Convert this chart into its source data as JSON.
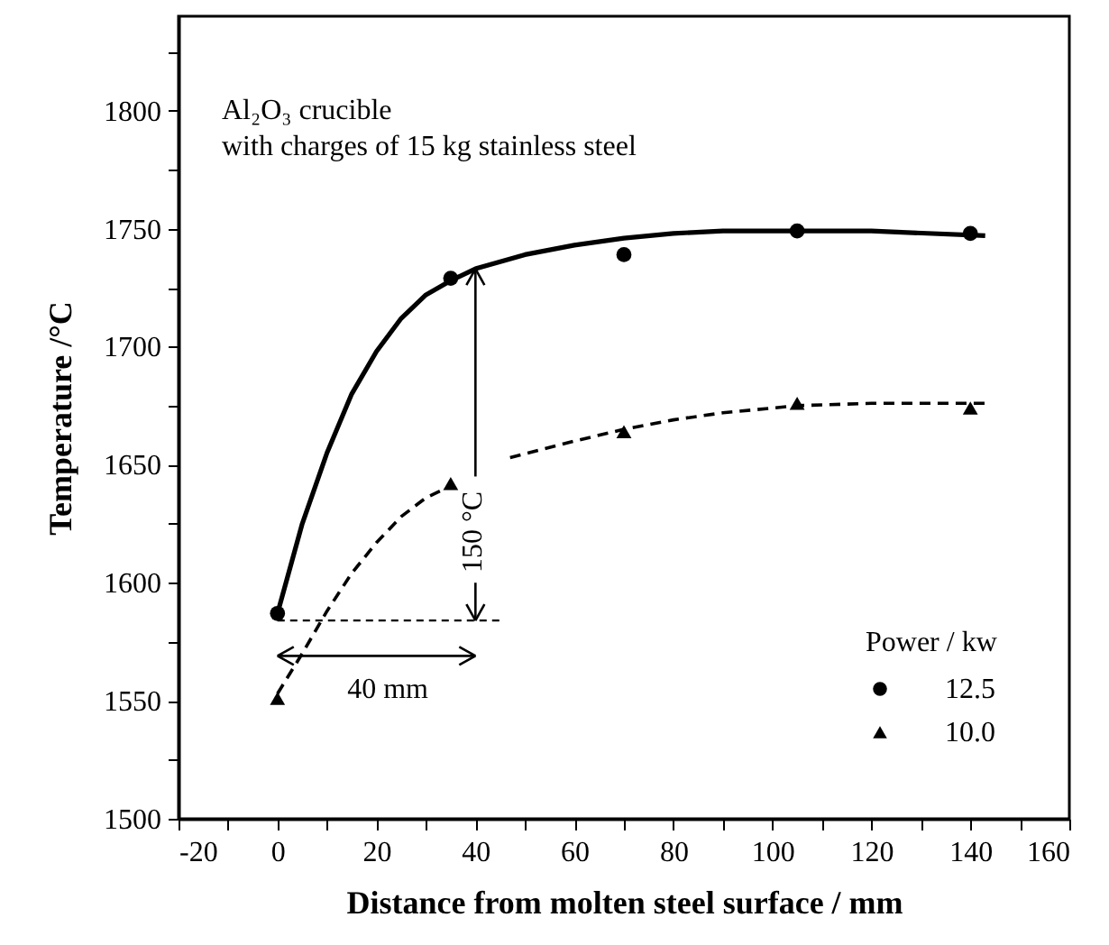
{
  "chart_data": {
    "type": "scatter",
    "xlabel": "Distance from molten steel surface / mm",
    "ylabel": "Temperature /°C",
    "legend_title": "Power / kw",
    "legend": "bottom right",
    "grid": false,
    "xlim": [
      -20,
      160
    ],
    "xticks": [
      -20,
      {
        "value": -10,
        "label": null
      },
      0,
      {
        "value": 10,
        "label": null
      },
      20,
      {
        "value": 30,
        "label": null
      },
      40,
      {
        "value": 50,
        "label": null
      },
      60,
      {
        "value": 70,
        "label": null
      },
      80,
      {
        "value": 90,
        "label": null
      },
      100,
      {
        "value": 110,
        "label": null
      },
      120,
      {
        "value": 130,
        "label": null
      },
      140,
      {
        "value": 150,
        "label": null
      },
      160
    ],
    "ylim": [
      1500,
      1840
    ],
    "yticks": [
      1500,
      {
        "value": 1525,
        "label": null
      },
      1550,
      {
        "value": 1575,
        "label": null
      },
      1600,
      {
        "value": 1625,
        "label": null
      },
      1650,
      {
        "value": 1675,
        "label": null
      },
      1700,
      {
        "value": 1725,
        "label": null
      },
      1750,
      {
        "value": 1775,
        "label": null
      },
      1800,
      {
        "value": 1825,
        "label": null
      }
    ],
    "annotations": [
      "Al₂O₃ crucible",
      "with charges of 15 kg stainless steel",
      {
        "text": "150 °C",
        "x": 40,
        "y": 1733
      },
      "40 mm"
    ],
    "series": [
      {
        "name": "12.5",
        "color": "#000000",
        "marker": "circle",
        "x": [
          0,
          35,
          70,
          105,
          140
        ],
        "values": [
          1587,
          1729,
          1739,
          1749,
          1748
        ]
      },
      {
        "name": "10.0",
        "color": "#000000",
        "marker": "triangle",
        "x": [
          0,
          35,
          70,
          105,
          140
        ],
        "values": [
          1551,
          1642,
          1664,
          1676,
          1674
        ]
      },
      {
        "type": "line",
        "color": "#000000",
        "marker": "none",
        "line_style": "solid",
        "x": [
          0,
          5,
          10,
          15,
          20,
          25,
          30,
          35,
          40,
          50,
          60,
          70,
          80,
          90,
          100,
          120,
          143
        ],
        "values": [
          1587,
          1625,
          1655,
          1680,
          1698,
          1712,
          1722,
          1728,
          1733,
          1739,
          1743,
          1746,
          1748,
          1749,
          1749,
          1749,
          1747
        ]
      },
      {
        "type": "line",
        "color": "#000000",
        "marker": "none",
        "line_style": "dashed",
        "x": [
          0,
          5,
          10,
          15,
          20,
          25,
          30,
          35
        ],
        "values": [
          1553,
          1570,
          1588,
          1604,
          1617,
          1628,
          1636,
          1641
        ]
      },
      {
        "type": "line",
        "color": "#000000",
        "marker": "none",
        "line_style": "dashed",
        "x": [
          47,
          60,
          70,
          80,
          90,
          105,
          120,
          143
        ],
        "values": [
          1653,
          1660,
          1665,
          1669,
          1672,
          1675,
          1676,
          1676
        ]
      }
    ]
  }
}
